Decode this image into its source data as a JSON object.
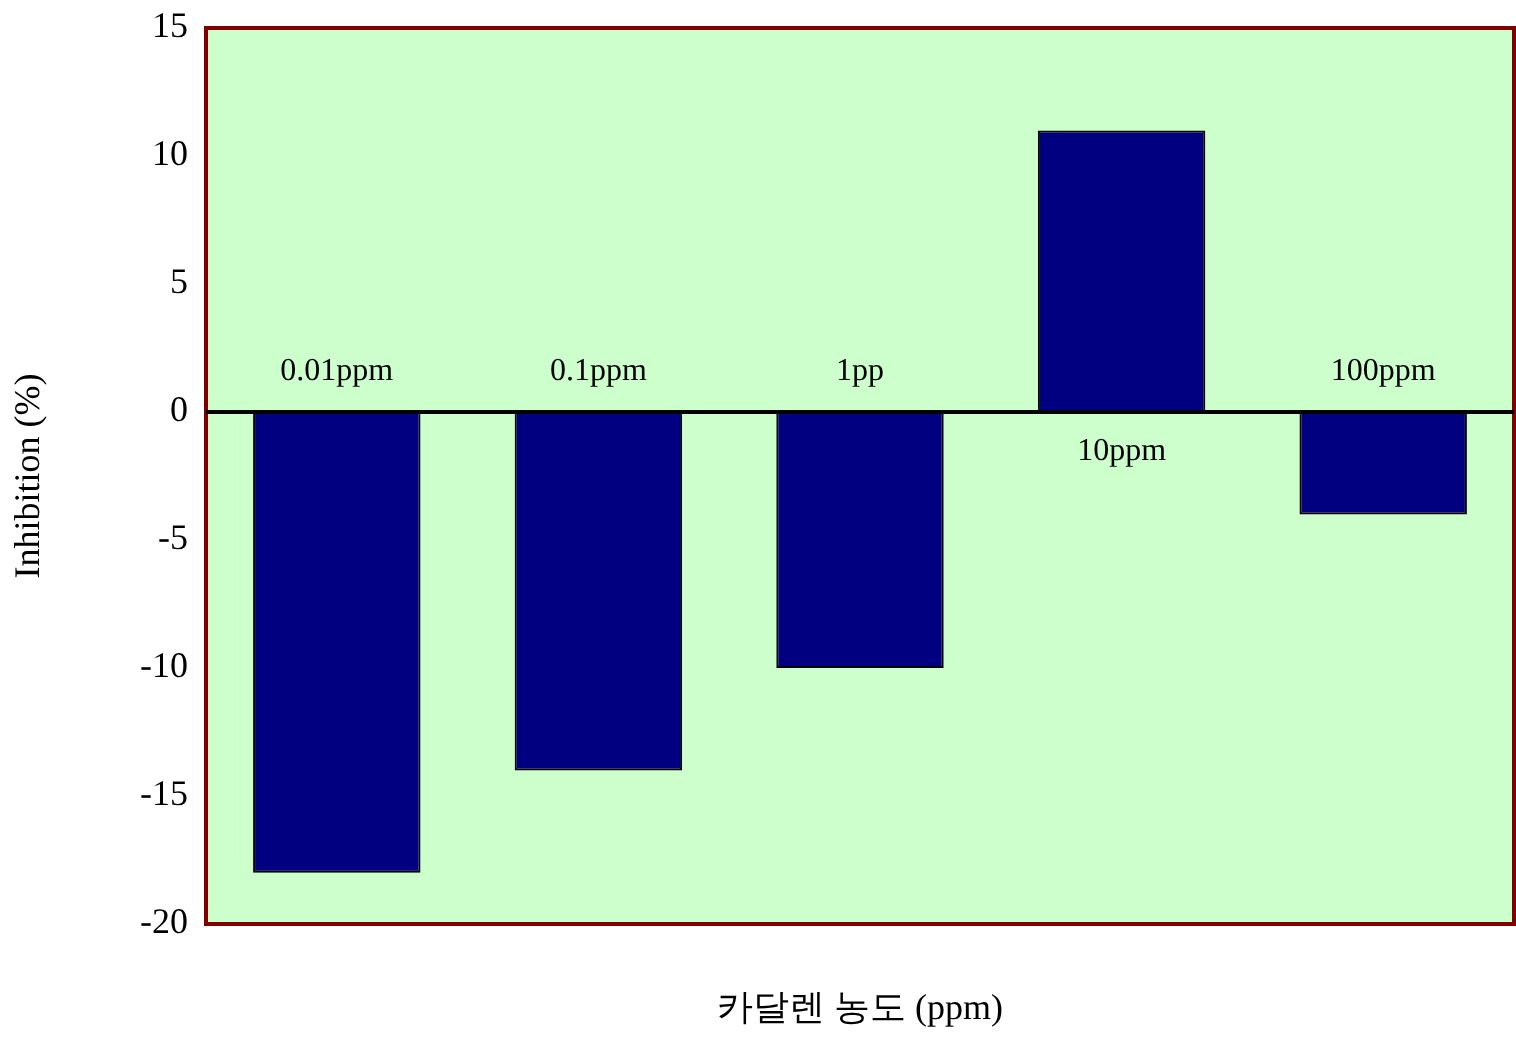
{
  "chart_data": {
    "type": "bar",
    "xlabel": "카달렌 농도 (ppm)",
    "ylabel": "Inhibition (%)",
    "categories": [
      "0.01ppm",
      "0.1ppm",
      "1pp",
      "10ppm",
      "100ppm"
    ],
    "values": [
      -18,
      -14,
      -10,
      11,
      -4
    ],
    "color": "#000080",
    "ylim": [
      -20,
      15
    ],
    "yticks": [
      -20,
      -15,
      -10,
      -5,
      0,
      5,
      10,
      15
    ],
    "grid": false,
    "legend": false
  }
}
